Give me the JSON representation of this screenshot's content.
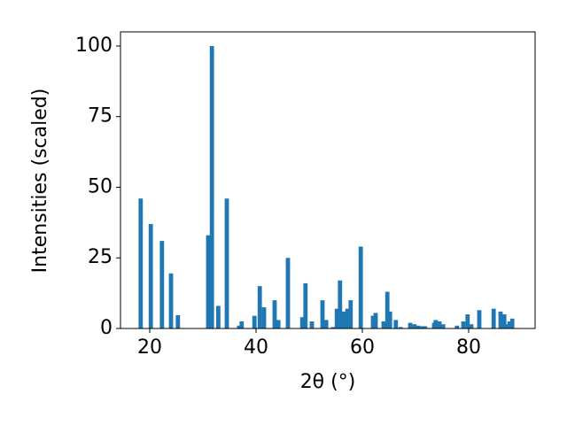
{
  "chart_data": {
    "type": "bar",
    "xlabel": "2θ (°)",
    "ylabel": "Intensities (scaled)",
    "color": "#1f77b4",
    "x": [
      18.3,
      20.2,
      22.3,
      24.0,
      25.3,
      31.0,
      31.7,
      32.9,
      34.5,
      36.8,
      37.3,
      39.7,
      40.7,
      41.5,
      43.5,
      44.2,
      46.0,
      48.7,
      49.3,
      50.5,
      52.5,
      53.2,
      54.5,
      55.2,
      55.8,
      56.5,
      57.2,
      57.8,
      59.7,
      62.0,
      62.5,
      64.0,
      64.7,
      65.2,
      66.3,
      67.2,
      69.0,
      69.8,
      70.5,
      71.3,
      71.8,
      73.5,
      73.8,
      74.5,
      75.2,
      77.8,
      79.0,
      79.8,
      80.5,
      82.0,
      84.7,
      86.0,
      86.7,
      87.2,
      87.7,
      88.2
    ],
    "values": [
      46,
      37,
      31,
      19.5,
      4.7,
      33,
      100,
      8,
      46,
      1,
      2.5,
      4.5,
      15,
      7.5,
      10,
      3,
      25,
      4,
      16,
      2.5,
      10,
      3,
      0.5,
      7,
      17,
      6,
      7,
      10,
      29,
      4.5,
      5.5,
      2.5,
      13,
      6,
      3,
      0.5,
      2,
      1.5,
      1,
      0.8,
      0.8,
      2,
      3,
      2.5,
      1.5,
      1,
      2.5,
      5,
      1.5,
      6.5,
      7,
      6,
      5,
      1.5,
      2.5,
      3.5
    ],
    "xlim": [
      14.5,
      92.5
    ],
    "ylim": [
      0,
      105
    ],
    "xticks": [
      20,
      40,
      60,
      80
    ],
    "yticks": [
      0,
      25,
      50,
      75,
      100
    ]
  }
}
